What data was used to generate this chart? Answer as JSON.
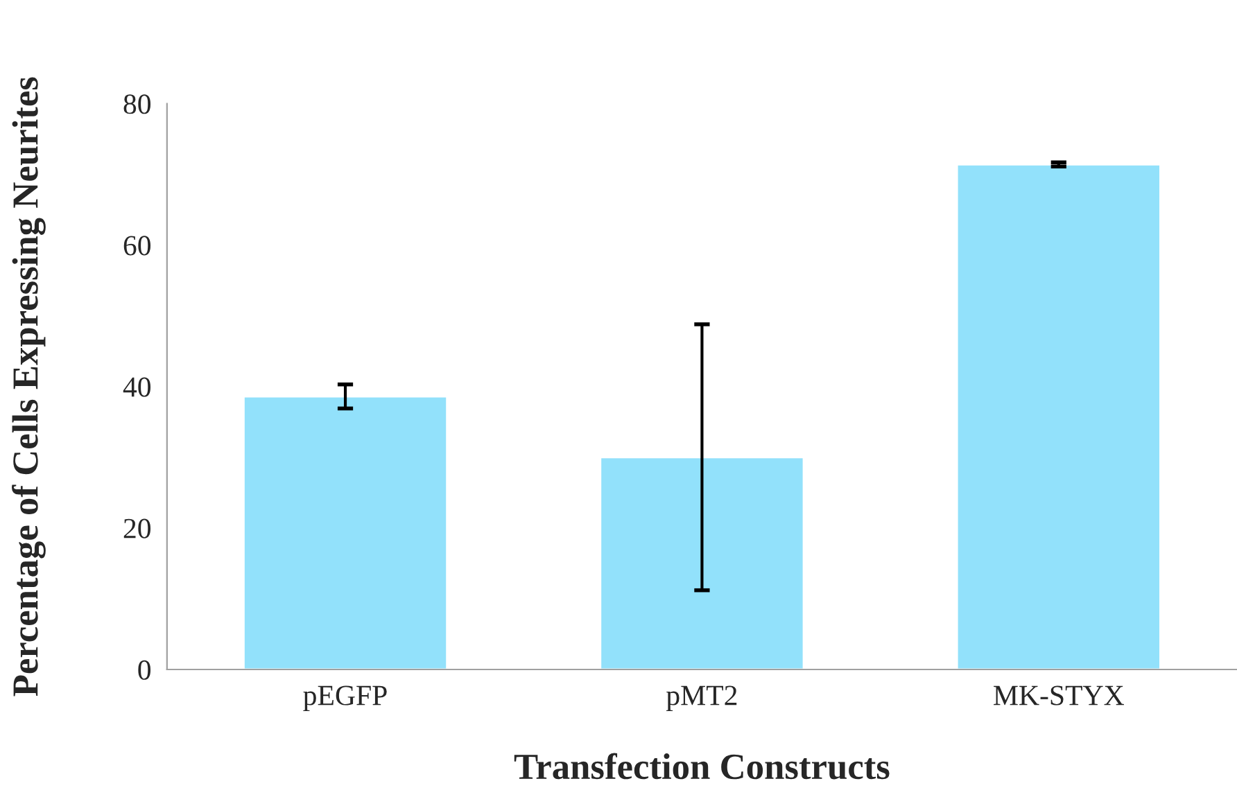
{
  "chart_data": {
    "type": "bar",
    "xlabel": "Transfection Constructs",
    "ylabel": "Percentage of Cells Expressing Neurites",
    "categories": [
      "pEGFP",
      "pMT2",
      "MK-STYX"
    ],
    "series": [
      {
        "color": "#92e1fb",
        "values": [
          38.6,
          30.0,
          71.4
        ],
        "errors": [
          1.7,
          18.8,
          0.3
        ]
      }
    ],
    "ylim": [
      0,
      80
    ],
    "yticks": [
      0,
      20,
      40,
      60,
      80
    ],
    "grid": false,
    "legend": false
  }
}
